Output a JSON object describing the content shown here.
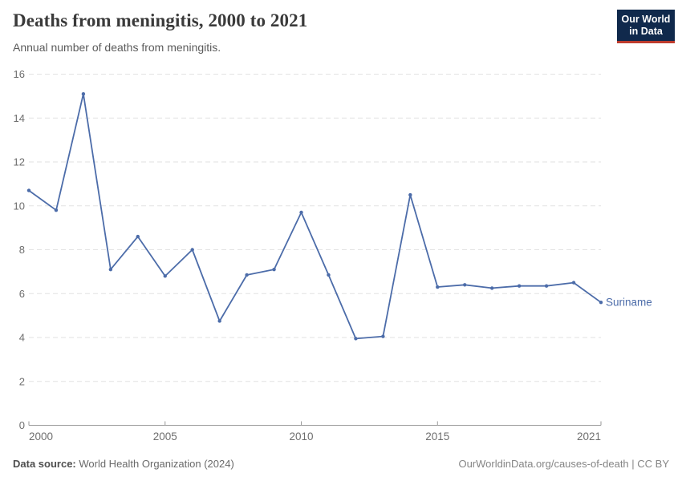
{
  "header": {
    "title": "Deaths from meningitis, 2000 to 2021",
    "subtitle": "Annual number of deaths from meningitis.",
    "logo": {
      "line1": "Our World",
      "line2": "in Data",
      "bg_color": "#10294C",
      "accent_color": "#BE3C2D",
      "text_color": "#FFFFFF"
    }
  },
  "chart_data": {
    "type": "line",
    "title": "Deaths from meningitis, 2000 to 2021",
    "xlabel": "",
    "ylabel": "",
    "x": [
      2000,
      2001,
      2002,
      2003,
      2004,
      2005,
      2006,
      2007,
      2008,
      2009,
      2010,
      2011,
      2012,
      2013,
      2014,
      2015,
      2016,
      2017,
      2018,
      2019,
      2020,
      2021
    ],
    "series": [
      {
        "name": "Suriname",
        "color": "#4C6CA9",
        "values": [
          10.7,
          9.8,
          15.1,
          7.1,
          8.6,
          6.8,
          8.0,
          4.75,
          6.85,
          7.1,
          9.7,
          6.85,
          3.95,
          4.05,
          10.5,
          6.3,
          6.4,
          6.25,
          6.35,
          6.35,
          6.5,
          5.6
        ]
      }
    ],
    "end_label": "Suriname",
    "xlim": [
      2000,
      2021
    ],
    "ylim": [
      0,
      16
    ],
    "xticks": [
      2000,
      2005,
      2010,
      2015,
      2021
    ],
    "yticks": [
      0,
      2,
      4,
      6,
      8,
      10,
      12,
      14,
      16
    ],
    "grid": "horizontal-dashed",
    "legend_position": "end-of-line"
  },
  "colors": {
    "line": "#4C6CA9",
    "grid": "#E2E2E2",
    "axis": "#9A9A9A",
    "tick_label": "#6E6E6E"
  },
  "footer": {
    "datasource_label": "Data source:",
    "datasource_value": " World Health Organization (2024)",
    "attribution": "OurWorldinData.org/causes-of-death | CC BY"
  }
}
